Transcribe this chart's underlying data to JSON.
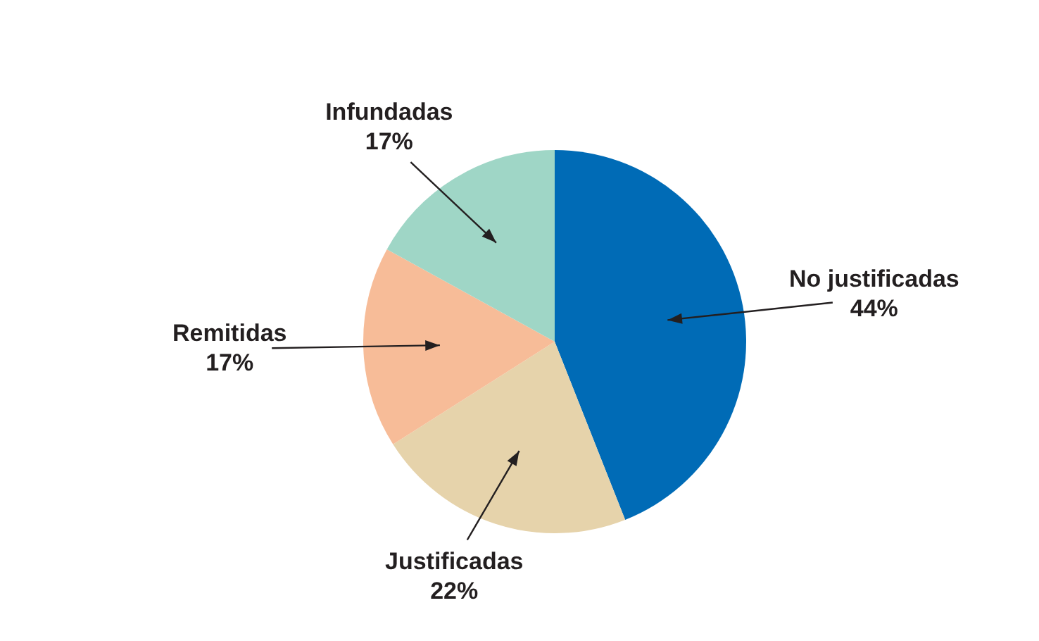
{
  "chart_data": {
    "type": "pie",
    "categories": [
      "No justificadas",
      "Justificadas",
      "Remitidas",
      "Infundadas"
    ],
    "values": [
      44,
      22,
      17,
      17
    ],
    "value_labels": [
      "44%",
      "22%",
      "17%",
      "17%"
    ],
    "colors": [
      "#006bb6",
      "#e6d3ab",
      "#f7bc98",
      "#9fd6c6"
    ],
    "legend": false
  }
}
